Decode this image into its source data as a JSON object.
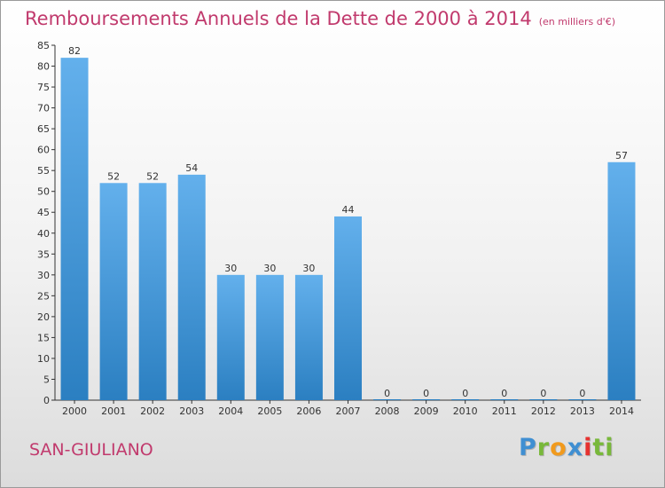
{
  "header": {
    "title": "Remboursements Annuels de la Dette de 2000 à 2014",
    "unit": "(en milliers d'€)"
  },
  "commune": "SAN-GIULIANO",
  "logo": {
    "text": "Proxiti",
    "letters": [
      "P",
      "r",
      "o",
      "x",
      "i",
      "ti"
    ]
  },
  "colors": {
    "title": "#c13a6d",
    "bar_top": "#63b0ec",
    "bar_bottom": "#2b7fc1",
    "axis": "#333333"
  },
  "chart_data": {
    "type": "bar",
    "categories": [
      "2000",
      "2001",
      "2002",
      "2003",
      "2004",
      "2005",
      "2006",
      "2007",
      "2008",
      "2009",
      "2010",
      "2011",
      "2012",
      "2013",
      "2014"
    ],
    "values": [
      82,
      52,
      52,
      54,
      30,
      30,
      30,
      44,
      0,
      0,
      0,
      0,
      0,
      0,
      57
    ],
    "title": "Remboursements Annuels de la Dette de 2000 à 2014",
    "ylim": [
      0,
      85
    ],
    "yticks": [
      0,
      5,
      10,
      15,
      20,
      25,
      30,
      35,
      40,
      45,
      50,
      55,
      60,
      65,
      70,
      75,
      80,
      85
    ],
    "grid": false,
    "data_labels": true
  }
}
